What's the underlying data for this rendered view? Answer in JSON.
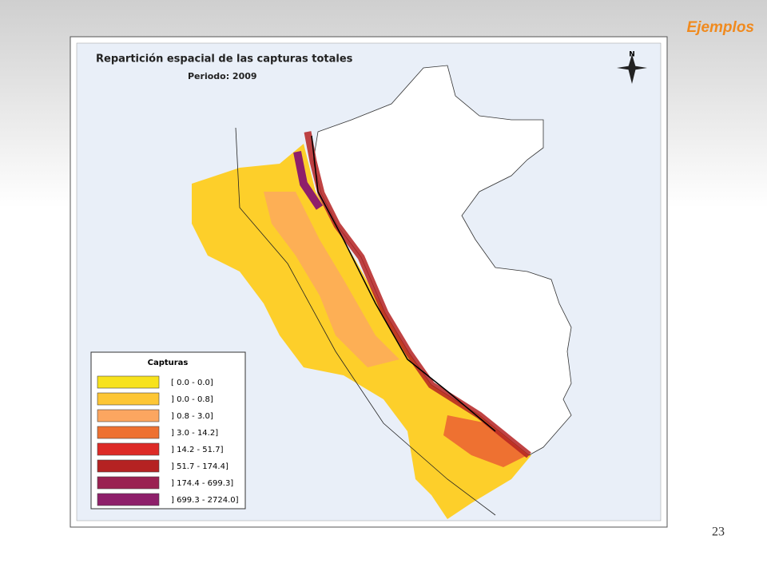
{
  "header": {
    "title": "Ejemplos"
  },
  "map": {
    "title": "Repartición espacial de las capturas totales",
    "subtitle": "Periodo: 2009"
  },
  "legend": {
    "title": "Capturas",
    "items": [
      {
        "label": "[ 0.0 - 0.0]",
        "color": "#f7e21c"
      },
      {
        "label": "] 0.0 - 0.8]",
        "color": "#fdc634"
      },
      {
        "label": "] 0.8 - 3.0]",
        "color": "#fca660"
      },
      {
        "label": "] 3.0 - 14.2]",
        "color": "#ee7131"
      },
      {
        "label": "] 14.2 - 51.7]",
        "color": "#dd2a26"
      },
      {
        "label": "] 51.7 - 174.4]",
        "color": "#b52222"
      },
      {
        "label": "] 174.4 - 699.3]",
        "color": "#9a2152"
      },
      {
        "label": "] 699.3 - 2724.0]",
        "color": "#8e1f6a"
      }
    ]
  },
  "footer": {
    "page_number": "23"
  }
}
